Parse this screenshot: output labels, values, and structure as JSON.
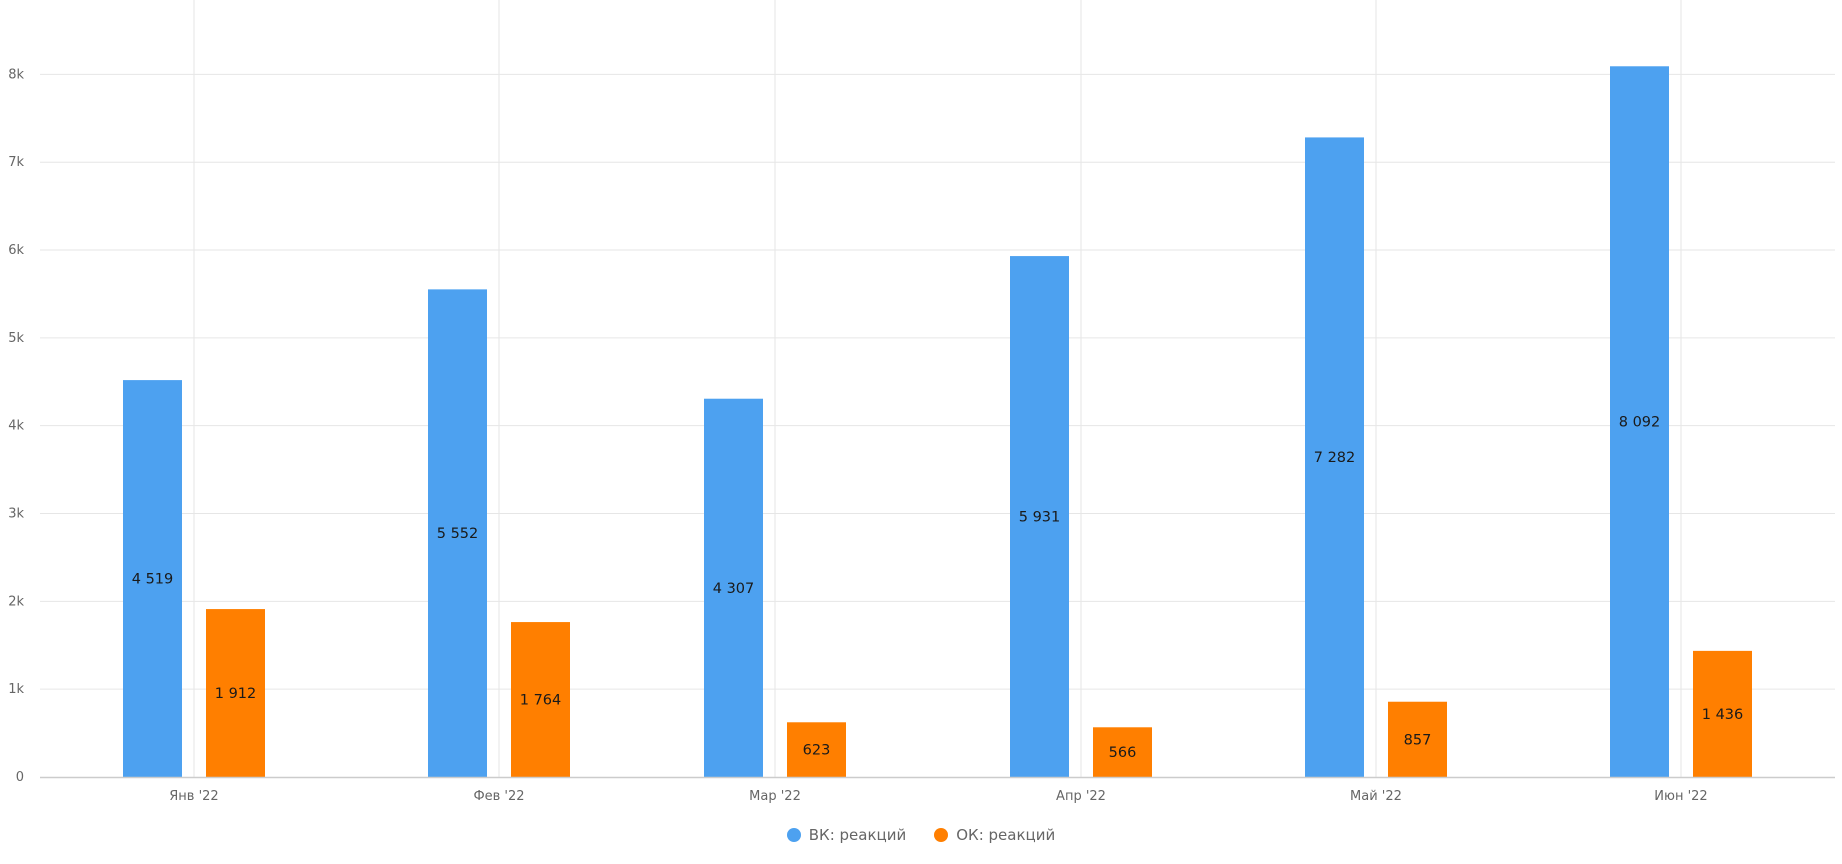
{
  "chart_data": {
    "type": "bar",
    "categories": [
      "Янв '22",
      "Фев '22",
      "Мар '22",
      "Апр '22",
      "Май '22",
      "Июн '22"
    ],
    "series": [
      {
        "name": "ВК: реакций",
        "color": "#4da1f0",
        "values": [
          4519,
          5552,
          4307,
          5931,
          7282,
          8092
        ]
      },
      {
        "name": "ОК: реакций",
        "color": "#ff7f00",
        "values": [
          1912,
          1764,
          623,
          566,
          857,
          1436
        ]
      }
    ],
    "data_labels": [
      [
        "4 519",
        "5 552",
        "4 307",
        "5 931",
        "7 282",
        "8 092"
      ],
      [
        "1 912",
        "1 764",
        "623",
        "566",
        "857",
        "1 436"
      ]
    ],
    "y_ticks": [
      {
        "value": 0,
        "label": "0"
      },
      {
        "value": 1000,
        "label": "1k"
      },
      {
        "value": 2000,
        "label": "2k"
      },
      {
        "value": 3000,
        "label": "3k"
      },
      {
        "value": 4000,
        "label": "4k"
      },
      {
        "value": 5000,
        "label": "5k"
      },
      {
        "value": 6000,
        "label": "6k"
      },
      {
        "value": 7000,
        "label": "7k"
      },
      {
        "value": 8000,
        "label": "8k"
      }
    ],
    "ylim": [
      0,
      8860
    ],
    "grid": true,
    "legend_position": "bottom-center",
    "title": "",
    "xlabel": "",
    "ylabel": ""
  }
}
